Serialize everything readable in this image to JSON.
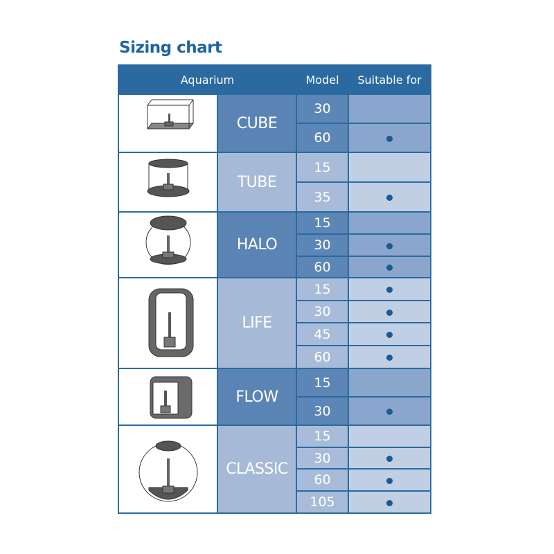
{
  "title": "Sizing chart",
  "header": {
    "aquarium": "Aquarium",
    "model": "Model",
    "suitable": "Suitable for"
  },
  "colors": {
    "header": "#2a6aa0",
    "dark_name": "#5a84b4",
    "dark_suitable": "#8aa6cc",
    "light_name": "#a6bad8",
    "light_suitable": "#c0cfe4",
    "dot": "#1a5a95"
  },
  "groups": [
    {
      "name": "CUBE",
      "shade": "dark",
      "icon": "cube-aquarium-icon",
      "models": [
        {
          "model": "30",
          "suitable": false
        },
        {
          "model": "60",
          "suitable": true
        }
      ]
    },
    {
      "name": "TUBE",
      "shade": "light",
      "icon": "tube-aquarium-icon",
      "models": [
        {
          "model": "15",
          "suitable": false
        },
        {
          "model": "35",
          "suitable": true
        }
      ]
    },
    {
      "name": "HALO",
      "shade": "dark",
      "icon": "halo-aquarium-icon",
      "models": [
        {
          "model": "15",
          "suitable": false
        },
        {
          "model": "30",
          "suitable": true
        },
        {
          "model": "60",
          "suitable": true
        }
      ]
    },
    {
      "name": "LIFE",
      "shade": "light",
      "icon": "life-aquarium-icon",
      "models": [
        {
          "model": "15",
          "suitable": true
        },
        {
          "model": "30",
          "suitable": true
        },
        {
          "model": "45",
          "suitable": true
        },
        {
          "model": "60",
          "suitable": true
        }
      ]
    },
    {
      "name": "FLOW",
      "shade": "dark",
      "icon": "flow-aquarium-icon",
      "models": [
        {
          "model": "15",
          "suitable": false
        },
        {
          "model": "30",
          "suitable": true
        }
      ]
    },
    {
      "name": "CLASSIC",
      "shade": "light",
      "icon": "classic-aquarium-icon",
      "models": [
        {
          "model": "15",
          "suitable": false
        },
        {
          "model": "30",
          "suitable": true
        },
        {
          "model": "60",
          "suitable": true
        },
        {
          "model": "105",
          "suitable": true
        }
      ]
    }
  ]
}
